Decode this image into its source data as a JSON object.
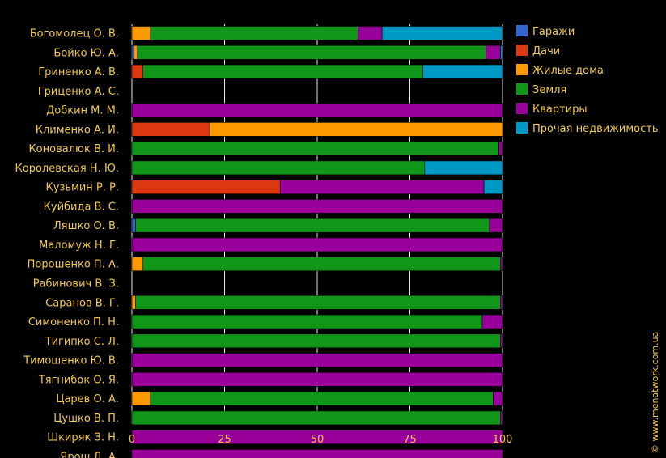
{
  "chart_data": {
    "type": "bar",
    "orientation": "horizontal",
    "stacked": true,
    "title": "",
    "xlabel": "",
    "ylabel": "",
    "xlim": [
      0,
      100
    ],
    "x_ticks": [
      "0",
      "25",
      "50",
      "75",
      "100"
    ],
    "grid": true,
    "legend_position": "top-right",
    "watermark": "© www.menatwork.com.ua",
    "categories": [
      "Богомолец О. В.",
      "Бойко Ю. А.",
      "Гриненко А. В.",
      "Гриценко А. С.",
      "Добкин М. М.",
      "Клименко А. И.",
      "Коновалюк В. И.",
      "Королевская Н. Ю.",
      "Кузьмин Р. Р.",
      "Куйбида В. С.",
      "Ляшко О. В.",
      "Маломуж Н. Г.",
      "Порошенко П. А.",
      "Рабинович В. З.",
      "Саранов В. Г.",
      "Симоненко П. Н.",
      "Тигипко С. Л.",
      "Тимошенко Ю. В.",
      "Тягнибок О. Я.",
      "Царев О. А.",
      "Цушко В. П.",
      "Шкиряк З. Н.",
      "Ярош Д. А."
    ],
    "series": [
      {
        "name": "Гаражи",
        "color": "#3366cc",
        "values": [
          0,
          0.5,
          0,
          0,
          0,
          0,
          0,
          0,
          0,
          0,
          1,
          0,
          0,
          0,
          0,
          0,
          0,
          0,
          0,
          0,
          0,
          0,
          0
        ]
      },
      {
        "name": "Дачи",
        "color": "#dc3912",
        "values": [
          0,
          0,
          3,
          0,
          0,
          21,
          0,
          0,
          40,
          0,
          0,
          0,
          0,
          0,
          0,
          0,
          0,
          0,
          0,
          0,
          0,
          0,
          0
        ]
      },
      {
        "name": "Жилые дома",
        "color": "#ff9900",
        "values": [
          5,
          1,
          0,
          0,
          0,
          79,
          0,
          0,
          0,
          0,
          0,
          0,
          3,
          0,
          1,
          0,
          0,
          0,
          0,
          5,
          0,
          0,
          0
        ]
      },
      {
        "name": "Земля",
        "color": "#109618",
        "values": [
          56,
          94,
          75.5,
          0,
          0,
          0,
          99,
          79,
          0,
          0,
          95.5,
          0,
          96.5,
          0,
          98.5,
          94.5,
          99.5,
          0,
          0,
          92.5,
          99.5,
          0,
          0
        ]
      },
      {
        "name": "Квартиры",
        "color": "#990099",
        "values": [
          6.5,
          4,
          0,
          0,
          100,
          0,
          1,
          0,
          55,
          100,
          3.5,
          100,
          0.5,
          0,
          0.5,
          5.5,
          0.5,
          100,
          100,
          2.5,
          0.5,
          100,
          100
        ]
      },
      {
        "name": "Прочая недвижимость",
        "color": "#0099c6",
        "values": [
          32.5,
          0.5,
          21.5,
          0,
          0,
          0,
          0,
          21,
          5,
          0,
          0,
          0,
          0,
          0,
          0,
          0,
          0,
          0,
          0,
          0,
          0,
          0,
          0
        ]
      }
    ]
  }
}
